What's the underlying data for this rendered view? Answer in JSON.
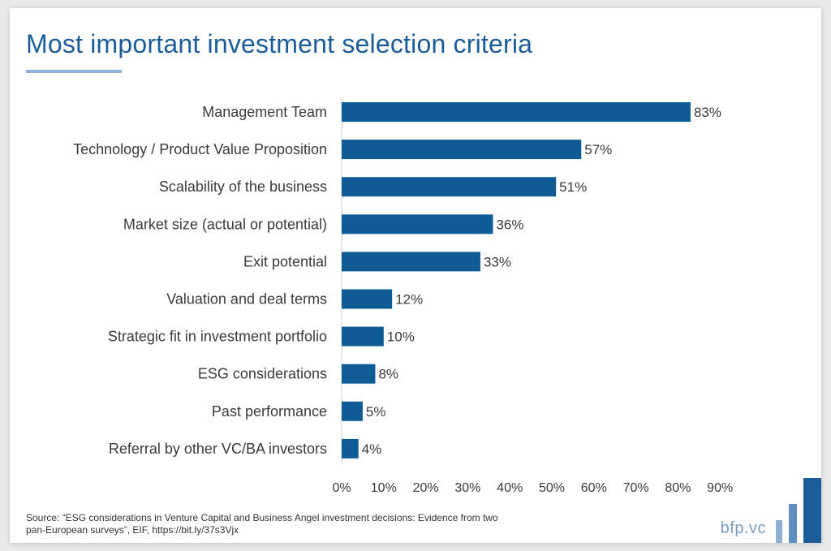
{
  "title": "Most important investment selection criteria",
  "source": "Source: “ESG considerations in Venture Capital and Business Angel investment decisions: Evidence from two pan-European surveys”, EIF, https://bit.ly/37s3Vjx",
  "brand": "bfp.vc",
  "colors": {
    "bar": "#0f5b96",
    "title": "#1b5c99",
    "accent": "#8fb0d4",
    "logo": "#1b5c99"
  },
  "chart_data": {
    "type": "bar",
    "orientation": "horizontal",
    "categories": [
      "Management Team",
      "Technology / Product Value Proposition",
      "Scalability of the business",
      "Market size (actual or potential)",
      "Exit potential",
      "Valuation and deal terms",
      "Strategic fit in investment portfolio",
      "ESG considerations",
      "Past performance",
      "Referral by other VC/BA investors"
    ],
    "values": [
      83,
      57,
      51,
      36,
      33,
      12,
      10,
      8,
      5,
      4
    ],
    "value_labels": [
      "83%",
      "57%",
      "51%",
      "36%",
      "33%",
      "12%",
      "10%",
      "8%",
      "5%",
      "4%"
    ],
    "xlim": [
      0,
      90
    ],
    "xticks": [
      "0%",
      "10%",
      "20%",
      "30%",
      "40%",
      "50%",
      "60%",
      "70%",
      "80%",
      "90%"
    ],
    "grid": false,
    "legend": "none"
  }
}
